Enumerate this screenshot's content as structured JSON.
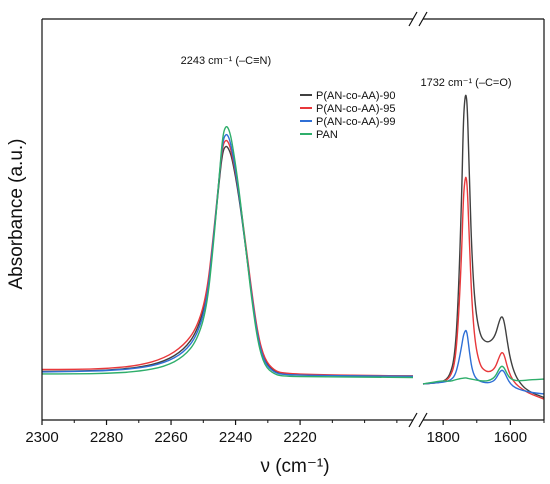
{
  "chart_data": {
    "type": "line",
    "xlabel": "ν (cm⁻¹)",
    "ylabel": "Absorbance (a.u.)",
    "x_axis_broken": true,
    "x_reversed": true,
    "segments": [
      {
        "xlim": [
          2300,
          2185
        ],
        "ticks": [
          2300,
          2280,
          2260,
          2240,
          2220
        ]
      },
      {
        "xlim": [
          1860,
          1500
        ],
        "ticks": [
          1800,
          1600
        ]
      }
    ],
    "ylim": [
      0,
      100
    ],
    "grid": false,
    "legend_position": "top-right",
    "annotations": [
      {
        "text": "2243 cm⁻¹ (–C≡N)",
        "x": 2243
      },
      {
        "text": "1732 cm⁻¹ (–C=O)",
        "x": 1732
      }
    ],
    "series": [
      {
        "name": "P(AN-co-AA)-90",
        "color": "#404040",
        "values": [
          [
            2300,
            12.1
          ],
          [
            2290,
            12.2
          ],
          [
            2280,
            12.4
          ],
          [
            2270,
            13.1
          ],
          [
            2262,
            14.6
          ],
          [
            2256,
            17.5
          ],
          [
            2252,
            22
          ],
          [
            2249,
            30
          ],
          [
            2247,
            44
          ],
          [
            2245,
            60
          ],
          [
            2244,
            67
          ],
          [
            2243,
            68.5
          ],
          [
            2242,
            67.5
          ],
          [
            2241,
            65
          ],
          [
            2239,
            56
          ],
          [
            2237,
            44
          ],
          [
            2235,
            31
          ],
          [
            2233,
            20
          ],
          [
            2231,
            14.6
          ],
          [
            2228,
            12
          ],
          [
            2225,
            11.4
          ],
          [
            2215,
            11.2
          ],
          [
            2200,
            11
          ],
          [
            2185,
            11
          ],
          [
            1860,
            9
          ],
          [
            1830,
            9.2
          ],
          [
            1800,
            9.5
          ],
          [
            1780,
            11
          ],
          [
            1765,
            16
          ],
          [
            1755,
            30
          ],
          [
            1745,
            56
          ],
          [
            1740,
            74
          ],
          [
            1736,
            80
          ],
          [
            1732,
            81.5
          ],
          [
            1728,
            78
          ],
          [
            1722,
            60
          ],
          [
            1715,
            42
          ],
          [
            1705,
            28
          ],
          [
            1690,
            21
          ],
          [
            1675,
            19.5
          ],
          [
            1660,
            19.5
          ],
          [
            1645,
            21
          ],
          [
            1632,
            25
          ],
          [
            1625,
            26
          ],
          [
            1618,
            24.5
          ],
          [
            1610,
            20
          ],
          [
            1600,
            15
          ],
          [
            1585,
            11
          ],
          [
            1565,
            8.5
          ],
          [
            1545,
            7.2
          ],
          [
            1525,
            6.4
          ],
          [
            1500,
            5.6
          ]
        ]
      },
      {
        "name": "P(AN-co-AA)-95",
        "color": "#e8383b",
        "values": [
          [
            2300,
            12.6
          ],
          [
            2290,
            12.6
          ],
          [
            2280,
            12.8
          ],
          [
            2270,
            13.6
          ],
          [
            2262,
            15.4
          ],
          [
            2256,
            18.6
          ],
          [
            2252,
            23
          ],
          [
            2249,
            31
          ],
          [
            2247,
            45
          ],
          [
            2245,
            61
          ],
          [
            2244,
            68.5
          ],
          [
            2243,
            70
          ],
          [
            2242,
            69
          ],
          [
            2241,
            66
          ],
          [
            2239,
            57
          ],
          [
            2237,
            45
          ],
          [
            2235,
            32
          ],
          [
            2233,
            21
          ],
          [
            2231,
            15.1
          ],
          [
            2228,
            12.3
          ],
          [
            2225,
            11.6
          ],
          [
            2215,
            11.3
          ],
          [
            2200,
            11.1
          ],
          [
            2185,
            11
          ],
          [
            1860,
            9
          ],
          [
            1830,
            9.2
          ],
          [
            1800,
            9.5
          ],
          [
            1780,
            10.5
          ],
          [
            1765,
            14
          ],
          [
            1755,
            24
          ],
          [
            1745,
            42
          ],
          [
            1740,
            55
          ],
          [
            1736,
            59.5
          ],
          [
            1732,
            61
          ],
          [
            1728,
            58
          ],
          [
            1722,
            44
          ],
          [
            1715,
            30
          ],
          [
            1705,
            19
          ],
          [
            1690,
            13.5
          ],
          [
            1675,
            12.2
          ],
          [
            1660,
            12
          ],
          [
            1645,
            13
          ],
          [
            1632,
            16
          ],
          [
            1625,
            17
          ],
          [
            1618,
            16.2
          ],
          [
            1610,
            13.5
          ],
          [
            1600,
            11
          ],
          [
            1585,
            9
          ],
          [
            1565,
            7.7
          ],
          [
            1545,
            6.7
          ],
          [
            1525,
            6
          ],
          [
            1500,
            5.2
          ]
        ]
      },
      {
        "name": "P(AN-co-AA)-99",
        "color": "#2f6fd6",
        "values": [
          [
            2300,
            12
          ],
          [
            2290,
            12.1
          ],
          [
            2280,
            12.3
          ],
          [
            2270,
            12.9
          ],
          [
            2262,
            14.2
          ],
          [
            2256,
            16.8
          ],
          [
            2252,
            21
          ],
          [
            2249,
            29
          ],
          [
            2247,
            44
          ],
          [
            2245,
            61
          ],
          [
            2244,
            69.5
          ],
          [
            2243,
            71.5
          ],
          [
            2242,
            70.5
          ],
          [
            2241,
            67
          ],
          [
            2239,
            57
          ],
          [
            2237,
            44
          ],
          [
            2235,
            31
          ],
          [
            2233,
            20
          ],
          [
            2231,
            14.2
          ],
          [
            2228,
            11.8
          ],
          [
            2225,
            11.3
          ],
          [
            2215,
            11.1
          ],
          [
            2200,
            11
          ],
          [
            2185,
            10.9
          ],
          [
            1860,
            9
          ],
          [
            1830,
            9.2
          ],
          [
            1800,
            9.4
          ],
          [
            1780,
            9.8
          ],
          [
            1765,
            11
          ],
          [
            1755,
            14
          ],
          [
            1745,
            18.5
          ],
          [
            1740,
            21
          ],
          [
            1736,
            22
          ],
          [
            1732,
            22.5
          ],
          [
            1728,
            21.3
          ],
          [
            1722,
            17
          ],
          [
            1715,
            13
          ],
          [
            1705,
            10.5
          ],
          [
            1690,
            9.6
          ],
          [
            1675,
            9.3
          ],
          [
            1660,
            9.3
          ],
          [
            1645,
            10
          ],
          [
            1632,
            12
          ],
          [
            1625,
            12.5
          ],
          [
            1618,
            12
          ],
          [
            1610,
            10.5
          ],
          [
            1600,
            9
          ],
          [
            1585,
            8
          ],
          [
            1565,
            7.4
          ],
          [
            1545,
            7
          ],
          [
            1525,
            6.7
          ],
          [
            1500,
            6.5
          ]
        ]
      },
      {
        "name": "PAN",
        "color": "#2fae6b",
        "values": [
          [
            2300,
            11.5
          ],
          [
            2290,
            11.5
          ],
          [
            2280,
            11.6
          ],
          [
            2270,
            12.1
          ],
          [
            2262,
            13.3
          ],
          [
            2256,
            15.8
          ],
          [
            2252,
            19.8
          ],
          [
            2249,
            27.5
          ],
          [
            2247,
            42.5
          ],
          [
            2245,
            61
          ],
          [
            2244,
            71
          ],
          [
            2243,
            73.5
          ],
          [
            2242,
            72.5
          ],
          [
            2241,
            69
          ],
          [
            2239,
            58
          ],
          [
            2237,
            44
          ],
          [
            2235,
            30
          ],
          [
            2233,
            19
          ],
          [
            2231,
            13.5
          ],
          [
            2228,
            11.4
          ],
          [
            2225,
            10.9
          ],
          [
            2215,
            10.8
          ],
          [
            2200,
            10.7
          ],
          [
            2185,
            10.6
          ],
          [
            1860,
            9
          ],
          [
            1830,
            9.4
          ],
          [
            1800,
            9.8
          ],
          [
            1780,
            9.6
          ],
          [
            1765,
            10
          ],
          [
            1755,
            10.2
          ],
          [
            1745,
            10.4
          ],
          [
            1740,
            10.4
          ],
          [
            1736,
            10.5
          ],
          [
            1732,
            10.5
          ],
          [
            1728,
            10.4
          ],
          [
            1722,
            10.3
          ],
          [
            1715,
            10.2
          ],
          [
            1705,
            10
          ],
          [
            1690,
            9.8
          ],
          [
            1675,
            9.7
          ],
          [
            1660,
            9.9
          ],
          [
            1645,
            10.8
          ],
          [
            1632,
            13
          ],
          [
            1625,
            13.5
          ],
          [
            1618,
            13
          ],
          [
            1610,
            11.5
          ],
          [
            1600,
            10.3
          ],
          [
            1585,
            9.8
          ],
          [
            1565,
            9.8
          ],
          [
            1545,
            10
          ],
          [
            1525,
            10.1
          ],
          [
            1500,
            10.2
          ]
        ]
      }
    ]
  }
}
